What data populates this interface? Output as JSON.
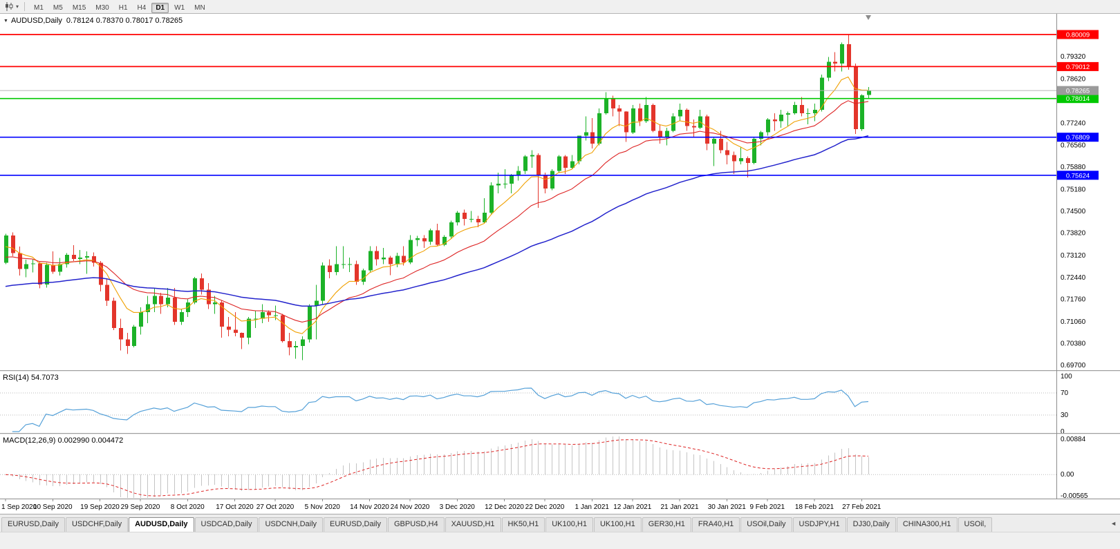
{
  "toolbar": {
    "timeframes": [
      "M1",
      "M5",
      "M15",
      "M30",
      "H1",
      "H4",
      "D1",
      "W1",
      "MN"
    ],
    "active_timeframe": "D1"
  },
  "chart": {
    "title_symbol": "AUDUSD,Daily",
    "title_ohlc": "0.78124 0.78370 0.78017 0.78265",
    "rsi_label": "RSI(14) 54.7073",
    "macd_label": "MACD(12,26,9) 0.002990 0.004472"
  },
  "colors": {
    "candle_up": "#1cb228",
    "candle_down": "#e3352b",
    "axis_text": "#000000",
    "grid_silver": "#b9b9b9"
  },
  "chart_data": {
    "type": "candlestick",
    "symbol": "AUDUSD",
    "timeframe": "Daily",
    "current_ohlc": {
      "open": 0.78124,
      "high": 0.7837,
      "low": 0.78017,
      "close": 0.78265
    },
    "layout": {
      "price_max": 0.80655,
      "price_min": 0.69552,
      "grid": false,
      "legend_position": "none"
    },
    "y_axis_labels": [
      "0.79320",
      "0.78620",
      "0.77940",
      "0.77240",
      "0.76560",
      "0.75880",
      "0.75180",
      "0.74500",
      "0.73820",
      "0.73120",
      "0.72440",
      "0.71760",
      "0.71060",
      "0.70380",
      "0.69700"
    ],
    "x_labels": [
      {
        "i": 0,
        "t": "1 Sep 2020"
      },
      {
        "i": 7,
        "t": "10 Sep 2020"
      },
      {
        "i": 14,
        "t": "19 Sep 2020"
      },
      {
        "i": 20,
        "t": "29 Sep 2020"
      },
      {
        "i": 27,
        "t": "8 Oct 2020"
      },
      {
        "i": 34,
        "t": "17 Oct 2020"
      },
      {
        "i": 40,
        "t": "27 Oct 2020"
      },
      {
        "i": 47,
        "t": "5 Nov 2020"
      },
      {
        "i": 54,
        "t": "14 Nov 2020"
      },
      {
        "i": 60,
        "t": "24 Nov 2020"
      },
      {
        "i": 67,
        "t": "3 Dec 2020"
      },
      {
        "i": 74,
        "t": "12 Dec 2020"
      },
      {
        "i": 80,
        "t": "22 Dec 2020"
      },
      {
        "i": 87,
        "t": "1 Jan 2021"
      },
      {
        "i": 93,
        "t": "12 Jan 2021"
      },
      {
        "i": 100,
        "t": "21 Jan 2021"
      },
      {
        "i": 107,
        "t": "30 Jan 2021"
      },
      {
        "i": 113,
        "t": "9 Feb 2021"
      },
      {
        "i": 120,
        "t": "18 Feb 2021"
      },
      {
        "i": 127,
        "t": "27 Feb 2021"
      }
    ],
    "candles": [
      [
        0.729,
        0.738,
        0.7285,
        0.7375
      ],
      [
        0.7375,
        0.7385,
        0.731,
        0.732
      ],
      [
        0.732,
        0.734,
        0.725,
        0.727
      ],
      [
        0.727,
        0.73,
        0.7245,
        0.7285
      ],
      [
        0.7285,
        0.73,
        0.726,
        0.7288
      ],
      [
        0.7288,
        0.7292,
        0.721,
        0.7222
      ],
      [
        0.7222,
        0.729,
        0.7212,
        0.7283
      ],
      [
        0.7283,
        0.7325,
        0.7255,
        0.7262
      ],
      [
        0.7262,
        0.7305,
        0.725,
        0.7286
      ],
      [
        0.7286,
        0.732,
        0.7275,
        0.7315
      ],
      [
        0.7315,
        0.7345,
        0.7295,
        0.7302
      ],
      [
        0.7302,
        0.733,
        0.7285,
        0.7306
      ],
      [
        0.7306,
        0.7325,
        0.7255,
        0.731
      ],
      [
        0.731,
        0.7322,
        0.7278,
        0.729
      ],
      [
        0.729,
        0.7295,
        0.72,
        0.7221
      ],
      [
        0.7221,
        0.724,
        0.7155,
        0.7171
      ],
      [
        0.7171,
        0.7181,
        0.708,
        0.7086
      ],
      [
        0.7086,
        0.7116,
        0.7016,
        0.7051
      ],
      [
        0.7051,
        0.7071,
        0.7006,
        0.7031
      ],
      [
        0.7031,
        0.7096,
        0.7026,
        0.7091
      ],
      [
        0.7091,
        0.7151,
        0.7066,
        0.7136
      ],
      [
        0.7136,
        0.7186,
        0.7101,
        0.7161
      ],
      [
        0.7161,
        0.7211,
        0.7136,
        0.7186
      ],
      [
        0.7186,
        0.7196,
        0.7131,
        0.7161
      ],
      [
        0.7161,
        0.7211,
        0.7151,
        0.7181
      ],
      [
        0.7181,
        0.7211,
        0.7096,
        0.7106
      ],
      [
        0.7106,
        0.7146,
        0.7096,
        0.7136
      ],
      [
        0.7136,
        0.7176,
        0.7121,
        0.7166
      ],
      [
        0.7166,
        0.7246,
        0.7161,
        0.7241
      ],
      [
        0.7241,
        0.7256,
        0.7191,
        0.7206
      ],
      [
        0.7206,
        0.7226,
        0.7146,
        0.7161
      ],
      [
        0.7161,
        0.7186,
        0.7131,
        0.7166
      ],
      [
        0.7166,
        0.7171,
        0.7056,
        0.7091
      ],
      [
        0.7091,
        0.7121,
        0.7061,
        0.7081
      ],
      [
        0.7081,
        0.7136,
        0.7061,
        0.7071
      ],
      [
        0.7071,
        0.7072,
        0.7021,
        0.7056
      ],
      [
        0.7056,
        0.7121,
        0.7036,
        0.7116
      ],
      [
        0.7116,
        0.7141,
        0.7086,
        0.7116
      ],
      [
        0.7116,
        0.7161,
        0.7101,
        0.7136
      ],
      [
        0.7136,
        0.7141,
        0.7106,
        0.7126
      ],
      [
        0.7126,
        0.7156,
        0.7111,
        0.7126
      ],
      [
        0.7126,
        0.7131,
        0.7041,
        0.7046
      ],
      [
        0.7046,
        0.7071,
        0.7001,
        0.7026
      ],
      [
        0.7026,
        0.7046,
        0.6991,
        0.7031
      ],
      [
        0.7031,
        0.7061,
        0.6986,
        0.7051
      ],
      [
        0.7051,
        0.7161,
        0.7041,
        0.7156
      ],
      [
        0.7156,
        0.7221,
        0.7051,
        0.7171
      ],
      [
        0.7171,
        0.7291,
        0.7161,
        0.7281
      ],
      [
        0.7281,
        0.7301,
        0.7241,
        0.7261
      ],
      [
        0.7261,
        0.7341,
        0.7251,
        0.7286
      ],
      [
        0.7286,
        0.7341,
        0.7271,
        0.7286
      ],
      [
        0.7286,
        0.7306,
        0.7261,
        0.7286
      ],
      [
        0.7286,
        0.7296,
        0.7221,
        0.7231
      ],
      [
        0.7231,
        0.7271,
        0.7221,
        0.7266
      ],
      [
        0.7266,
        0.7341,
        0.7261,
        0.7326
      ],
      [
        0.7326,
        0.7341,
        0.7281,
        0.7301
      ],
      [
        0.7301,
        0.7336,
        0.7286,
        0.7306
      ],
      [
        0.7306,
        0.7311,
        0.7251,
        0.7286
      ],
      [
        0.7286,
        0.7321,
        0.7276,
        0.7311
      ],
      [
        0.7311,
        0.7341,
        0.7281,
        0.7291
      ],
      [
        0.7291,
        0.7376,
        0.7286,
        0.7361
      ],
      [
        0.7361,
        0.7374,
        0.7341,
        0.7366
      ],
      [
        0.7366,
        0.7376,
        0.7336,
        0.7356
      ],
      [
        0.7356,
        0.7396,
        0.7346,
        0.7391
      ],
      [
        0.7391,
        0.7411,
        0.7341,
        0.7346
      ],
      [
        0.7346,
        0.7376,
        0.7341,
        0.7371
      ],
      [
        0.7371,
        0.7421,
        0.7366,
        0.7416
      ],
      [
        0.7416,
        0.7451,
        0.7406,
        0.7446
      ],
      [
        0.7446,
        0.7456,
        0.7406,
        0.7426
      ],
      [
        0.7426,
        0.7451,
        0.7416,
        0.7426
      ],
      [
        0.7426,
        0.7436,
        0.7401,
        0.7416
      ],
      [
        0.7416,
        0.7491,
        0.7411,
        0.7446
      ],
      [
        0.7446,
        0.7541,
        0.7441,
        0.7531
      ],
      [
        0.7531,
        0.7571,
        0.7506,
        0.7536
      ],
      [
        0.7536,
        0.7581,
        0.7521,
        0.7536
      ],
      [
        0.7536,
        0.7566,
        0.7506,
        0.7561
      ],
      [
        0.7561,
        0.7591,
        0.7546,
        0.7576
      ],
      [
        0.7576,
        0.7626,
        0.7566,
        0.7621
      ],
      [
        0.7621,
        0.7641,
        0.7586,
        0.7626
      ],
      [
        0.7626,
        0.7631,
        0.7461,
        0.7561
      ],
      [
        0.7561,
        0.7571,
        0.7506,
        0.7521
      ],
      [
        0.7521,
        0.7581,
        0.7516,
        0.7576
      ],
      [
        0.7576,
        0.7626,
        0.7571,
        0.7621
      ],
      [
        0.7621,
        0.7626,
        0.7566,
        0.7586
      ],
      [
        0.7586,
        0.7626,
        0.7581,
        0.7606
      ],
      [
        0.7606,
        0.7686,
        0.7596,
        0.7686
      ],
      [
        0.7686,
        0.7746,
        0.7671,
        0.7696
      ],
      [
        0.7696,
        0.7741,
        0.7646,
        0.7661
      ],
      [
        0.7661,
        0.7771,
        0.7656,
        0.7756
      ],
      [
        0.7756,
        0.7821,
        0.7751,
        0.7801
      ],
      [
        0.7801,
        0.7811,
        0.7746,
        0.7771
      ],
      [
        0.7771,
        0.7781,
        0.7716,
        0.7761
      ],
      [
        0.7761,
        0.7762,
        0.7666,
        0.7696
      ],
      [
        0.7696,
        0.7781,
        0.7691,
        0.7771
      ],
      [
        0.7771,
        0.7786,
        0.7716,
        0.7731
      ],
      [
        0.7731,
        0.7806,
        0.7726,
        0.7781
      ],
      [
        0.7781,
        0.7786,
        0.7696,
        0.7701
      ],
      [
        0.7701,
        0.7721,
        0.7661,
        0.7681
      ],
      [
        0.7681,
        0.7711,
        0.7656,
        0.7701
      ],
      [
        0.7701,
        0.7756,
        0.7696,
        0.7746
      ],
      [
        0.7746,
        0.7786,
        0.7731,
        0.7766
      ],
      [
        0.7766,
        0.7771,
        0.7701,
        0.7716
      ],
      [
        0.7716,
        0.7736,
        0.7681,
        0.7711
      ],
      [
        0.7711,
        0.7766,
        0.7706,
        0.7746
      ],
      [
        0.7746,
        0.7751,
        0.7641,
        0.7661
      ],
      [
        0.7661,
        0.7681,
        0.7591,
        0.7676
      ],
      [
        0.7676,
        0.7701,
        0.7631,
        0.7641
      ],
      [
        0.7641,
        0.7666,
        0.7596,
        0.7626
      ],
      [
        0.7626,
        0.7636,
        0.7566,
        0.7606
      ],
      [
        0.7606,
        0.7651,
        0.7596,
        0.7616
      ],
      [
        0.7616,
        0.7621,
        0.7556,
        0.7601
      ],
      [
        0.7601,
        0.7681,
        0.7596,
        0.7676
      ],
      [
        0.7676,
        0.7701,
        0.7656,
        0.7696
      ],
      [
        0.7696,
        0.7741,
        0.7686,
        0.7736
      ],
      [
        0.7736,
        0.7756,
        0.7701,
        0.7731
      ],
      [
        0.7731,
        0.7766,
        0.7711,
        0.7751
      ],
      [
        0.7751,
        0.7761,
        0.7716,
        0.7756
      ],
      [
        0.7756,
        0.7791,
        0.7751,
        0.7781
      ],
      [
        0.7781,
        0.7806,
        0.7746,
        0.7756
      ],
      [
        0.7756,
        0.7771,
        0.7721,
        0.7756
      ],
      [
        0.7756,
        0.7786,
        0.7731,
        0.7766
      ],
      [
        0.7766,
        0.7876,
        0.7761,
        0.7866
      ],
      [
        0.7866,
        0.7931,
        0.7856,
        0.7916
      ],
      [
        0.7916,
        0.7946,
        0.7886,
        0.7911
      ],
      [
        0.7911,
        0.7976,
        0.7886,
        0.7971
      ],
      [
        0.7971,
        0.80009,
        0.7891,
        0.7901
      ],
      [
        0.7901,
        0.7911,
        0.7691,
        0.7706
      ],
      [
        0.7706,
        0.7815,
        0.7701,
        0.7812
      ],
      [
        0.78124,
        0.7837,
        0.78017,
        0.78265
      ]
    ],
    "h_lines": [
      {
        "price": 0.80009,
        "label": "0.80009",
        "color": "#ff0000"
      },
      {
        "price": 0.79012,
        "label": "0.79012",
        "color": "#ff0000"
      },
      {
        "price": 0.78014,
        "label": "0.78014",
        "color": "#00c800"
      },
      {
        "price": 0.76809,
        "label": "0.76809",
        "color": "#0000ff"
      },
      {
        "price": 0.75624,
        "label": "0.75624",
        "color": "#0000ff"
      }
    ],
    "current_price": {
      "value": 0.78265,
      "label": "0.78265",
      "line_color": "#b4b4b4",
      "tag_color": "#9a9a9a"
    },
    "moving_averages": [
      {
        "period": 8,
        "seed": 0.733,
        "color": "#f0a000",
        "width": 1.1
      },
      {
        "period": 20,
        "seed": 0.73,
        "color": "#dd2222",
        "width": 1.1
      },
      {
        "period": 55,
        "seed": 0.721,
        "color": "#2222cc",
        "width": 1.5
      }
    ],
    "rsi": {
      "label": "RSI(14)",
      "period": 14,
      "value": 54.7073,
      "color": "#54a0d8",
      "levels": [
        70,
        30
      ],
      "axis_labels": [
        "100",
        "70",
        "30",
        "0"
      ]
    },
    "macd": {
      "label": "MACD(12,26,9)",
      "fast": 12,
      "slow": 26,
      "signal": 9,
      "macd_value": 0.00299,
      "signal_value": 0.004472,
      "hist_color": "#c4c4c4",
      "signal_color": "#dd2222",
      "axis_labels": [
        "0.00884",
        "0.00",
        "-0.00565"
      ],
      "axis_max": 0.00884,
      "axis_min": -0.00565
    }
  },
  "tabs": {
    "scroll_left_icon": "◄",
    "items": [
      {
        "label": "EURUSD,Daily"
      },
      {
        "label": "USDCHF,Daily"
      },
      {
        "label": "AUDUSD,Daily",
        "active": true
      },
      {
        "label": "USDCAD,Daily"
      },
      {
        "label": "USDCNH,Daily"
      },
      {
        "label": "EURUSD,Daily"
      },
      {
        "label": "GBPUSD,H4"
      },
      {
        "label": "XAUUSD,H1"
      },
      {
        "label": "HK50,H1"
      },
      {
        "label": "UK100,H1"
      },
      {
        "label": "UK100,H1"
      },
      {
        "label": "GER30,H1"
      },
      {
        "label": "FRA40,H1"
      },
      {
        "label": "USOil,Daily"
      },
      {
        "label": "USDJPY,H1"
      },
      {
        "label": "DJ30,Daily"
      },
      {
        "label": "CHINA300,H1"
      },
      {
        "label": "USOil,"
      }
    ]
  }
}
